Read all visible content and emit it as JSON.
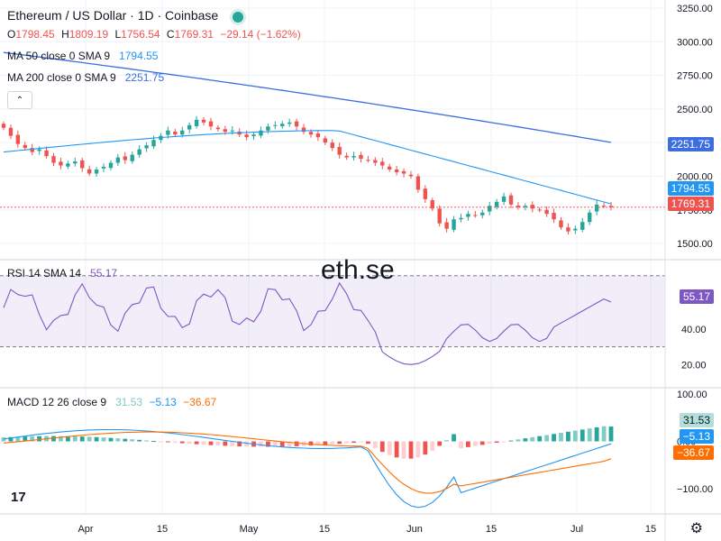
{
  "header": {
    "title": "Ethereum / US Dollar · 1D · Coinbase",
    "ohlc": {
      "o_label": "O",
      "o": "1798.45",
      "h_label": "H",
      "h": "1809.19",
      "l_label": "L",
      "l": "1756.54",
      "c_label": "C",
      "c": "1769.31",
      "change": "−29.14 (−1.62%)"
    },
    "ma50": {
      "label": "MA 50 close 0 SMA 9",
      "value": "1794.55"
    },
    "ma200": {
      "label": "MA 200 close 0 SMA 9",
      "value": "2251.75"
    },
    "collapse_icon": "chevron-up-icon"
  },
  "rsi_legend": {
    "label": "RSI 14 SMA 14",
    "value": "55.17"
  },
  "macd_legend": {
    "label": "MACD 12 26 close 9",
    "hist": "31.53",
    "macd": "−5.13",
    "signal": "−36.67"
  },
  "watermark": "eth.se",
  "price_badges": {
    "ma200": "2251.75",
    "ma50": "1794.55",
    "last": "1769.31"
  },
  "rsi_badge": "55.17",
  "macd_badges": {
    "hist": "31.53",
    "macd": "−5.13",
    "signal": "−36.67"
  },
  "colors": {
    "up": "#26a69a",
    "down": "#ef5350",
    "ma50": "#2196f3",
    "ma200": "#3c6ee0",
    "rsi": "#7e57c2",
    "macd": "#2196f3",
    "signal": "#ff6d00"
  },
  "chart_data": [
    {
      "type": "candlestick",
      "title": "Ethereum / US Dollar · 1D · Coinbase",
      "x_ticks": [
        "Apr",
        "15",
        "May",
        "15",
        "Jun",
        "15",
        "Jul",
        "15"
      ],
      "y_ticks": [
        "3250.00",
        "3000.00",
        "2750.00",
        "2500.00",
        "2250.00",
        "2000.00",
        "1750.00",
        "1500.00"
      ],
      "ylim": [
        1380,
        3310
      ],
      "closes": [
        2360,
        2300,
        2240,
        2210,
        2180,
        2200,
        2150,
        2100,
        2080,
        2095,
        2110,
        2060,
        2020,
        2050,
        2070,
        2100,
        2140,
        2120,
        2160,
        2200,
        2230,
        2270,
        2300,
        2340,
        2310,
        2340,
        2380,
        2420,
        2400,
        2370,
        2350,
        2330,
        2340,
        2310,
        2290,
        2310,
        2340,
        2370,
        2380,
        2390,
        2400,
        2370,
        2330,
        2310,
        2290,
        2250,
        2210,
        2160,
        2140,
        2150,
        2130,
        2120,
        2100,
        2080,
        2050,
        2030,
        2020,
        2000,
        1900,
        1830,
        1760,
        1650,
        1610,
        1680,
        1690,
        1720,
        1710,
        1730,
        1780,
        1810,
        1850,
        1790,
        1770,
        1780,
        1760,
        1750,
        1720,
        1680,
        1620,
        1590,
        1610,
        1660,
        1730,
        1790,
        1780,
        1769.31
      ],
      "ma50_end": 1794.55,
      "ma200_end": 2251.75,
      "last_close": 1769.31
    },
    {
      "type": "line",
      "title": "RSI 14 SMA 14",
      "y_ticks": [
        "60.00",
        "40.00",
        "20.00"
      ],
      "bands": [
        70,
        30
      ],
      "last_value": 55.17
    },
    {
      "type": "histogram+line",
      "title": "MACD 12 26 close 9",
      "y_ticks": [
        "100.00",
        "0.00",
        "−100.00"
      ],
      "histogram_last": 31.53,
      "macd_last": -5.13,
      "signal_last": -36.67
    }
  ]
}
